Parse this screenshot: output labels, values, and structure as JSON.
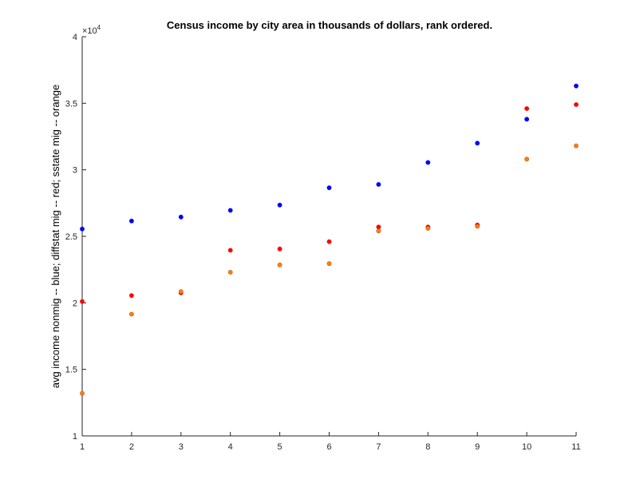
{
  "chart_data": {
    "type": "scatter",
    "title": "Census income by city area in thousands of dollars, rank ordered.",
    "xlabel": "",
    "ylabel": "avg income nonmig -- blue; diffstat mig -- red; sstate mig -- orange",
    "xlim": [
      1,
      11
    ],
    "ylim": [
      10000,
      40000
    ],
    "x_ticks": [
      "1",
      "2",
      "3",
      "4",
      "5",
      "6",
      "7",
      "8",
      "9",
      "10",
      "11"
    ],
    "y_ticks": [
      "1",
      "1.5",
      "2",
      "2.5",
      "3",
      "3.5",
      "4"
    ],
    "y_tick_values": [
      10000,
      15000,
      20000,
      25000,
      30000,
      35000,
      40000
    ],
    "y_exponent_base": "×10",
    "y_exponent_power": "4",
    "grid": false,
    "x": [
      1,
      2,
      3,
      4,
      5,
      6,
      7,
      8,
      9,
      10,
      11
    ],
    "series": [
      {
        "color": "#0000ff",
        "values": [
          25550,
          26150,
          26450,
          26950,
          27350,
          28650,
          28900,
          30550,
          32000,
          33800,
          36300
        ]
      },
      {
        "color": "#ff0000",
        "values": [
          20100,
          20550,
          20750,
          23950,
          24050,
          24600,
          25700,
          25700,
          25850,
          34600,
          34900
        ]
      },
      {
        "color": "#ff7f0e",
        "values": [
          13200,
          19150,
          20850,
          22300,
          22850,
          22950,
          25400,
          25600,
          25750,
          30800,
          31800
        ]
      }
    ]
  }
}
